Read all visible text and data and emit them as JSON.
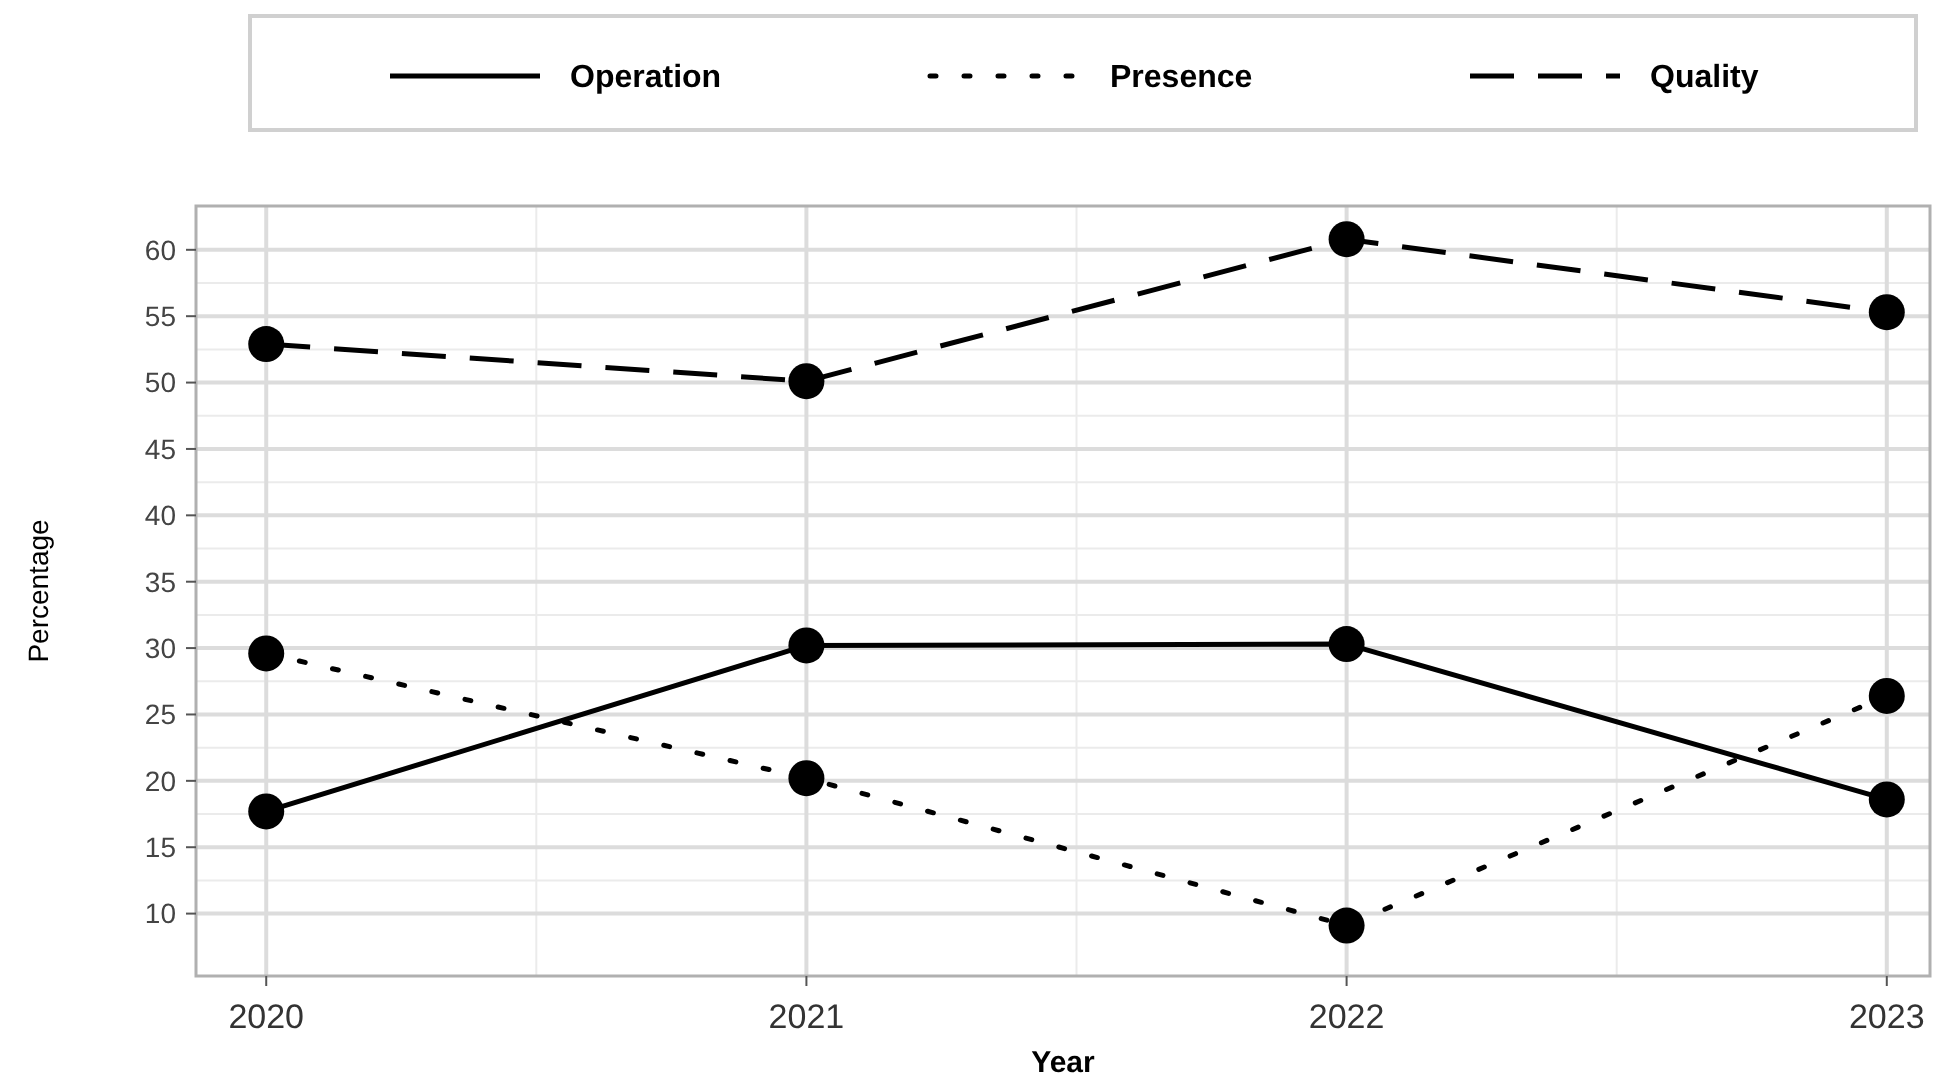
{
  "chart_data": {
    "type": "line",
    "xlabel": "Year",
    "ylabel": "Percentage",
    "x": [
      2020,
      2021,
      2022,
      2023
    ],
    "series": [
      {
        "name": "Operation",
        "color": "#000000",
        "line_style": "solid",
        "values": [
          17.7,
          30.2,
          30.3,
          18.6
        ]
      },
      {
        "name": "Presence",
        "color": "#000000",
        "line_style": "dotted",
        "values": [
          29.6,
          20.2,
          9.1,
          26.4
        ]
      },
      {
        "name": "Quality",
        "color": "#000000",
        "line_style": "dashed",
        "values": [
          52.9,
          50.1,
          60.8,
          55.3
        ]
      }
    ],
    "xlim": [
      2019.87,
      2023.08
    ],
    "xticks": [
      2020,
      2021,
      2022,
      2023
    ],
    "ylim": [
      5.3,
      63.3
    ],
    "yticks": [
      10,
      15,
      20,
      25,
      30,
      35,
      40,
      45,
      50,
      55,
      60
    ],
    "grid": true,
    "legend": "top",
    "marker": "circle"
  }
}
